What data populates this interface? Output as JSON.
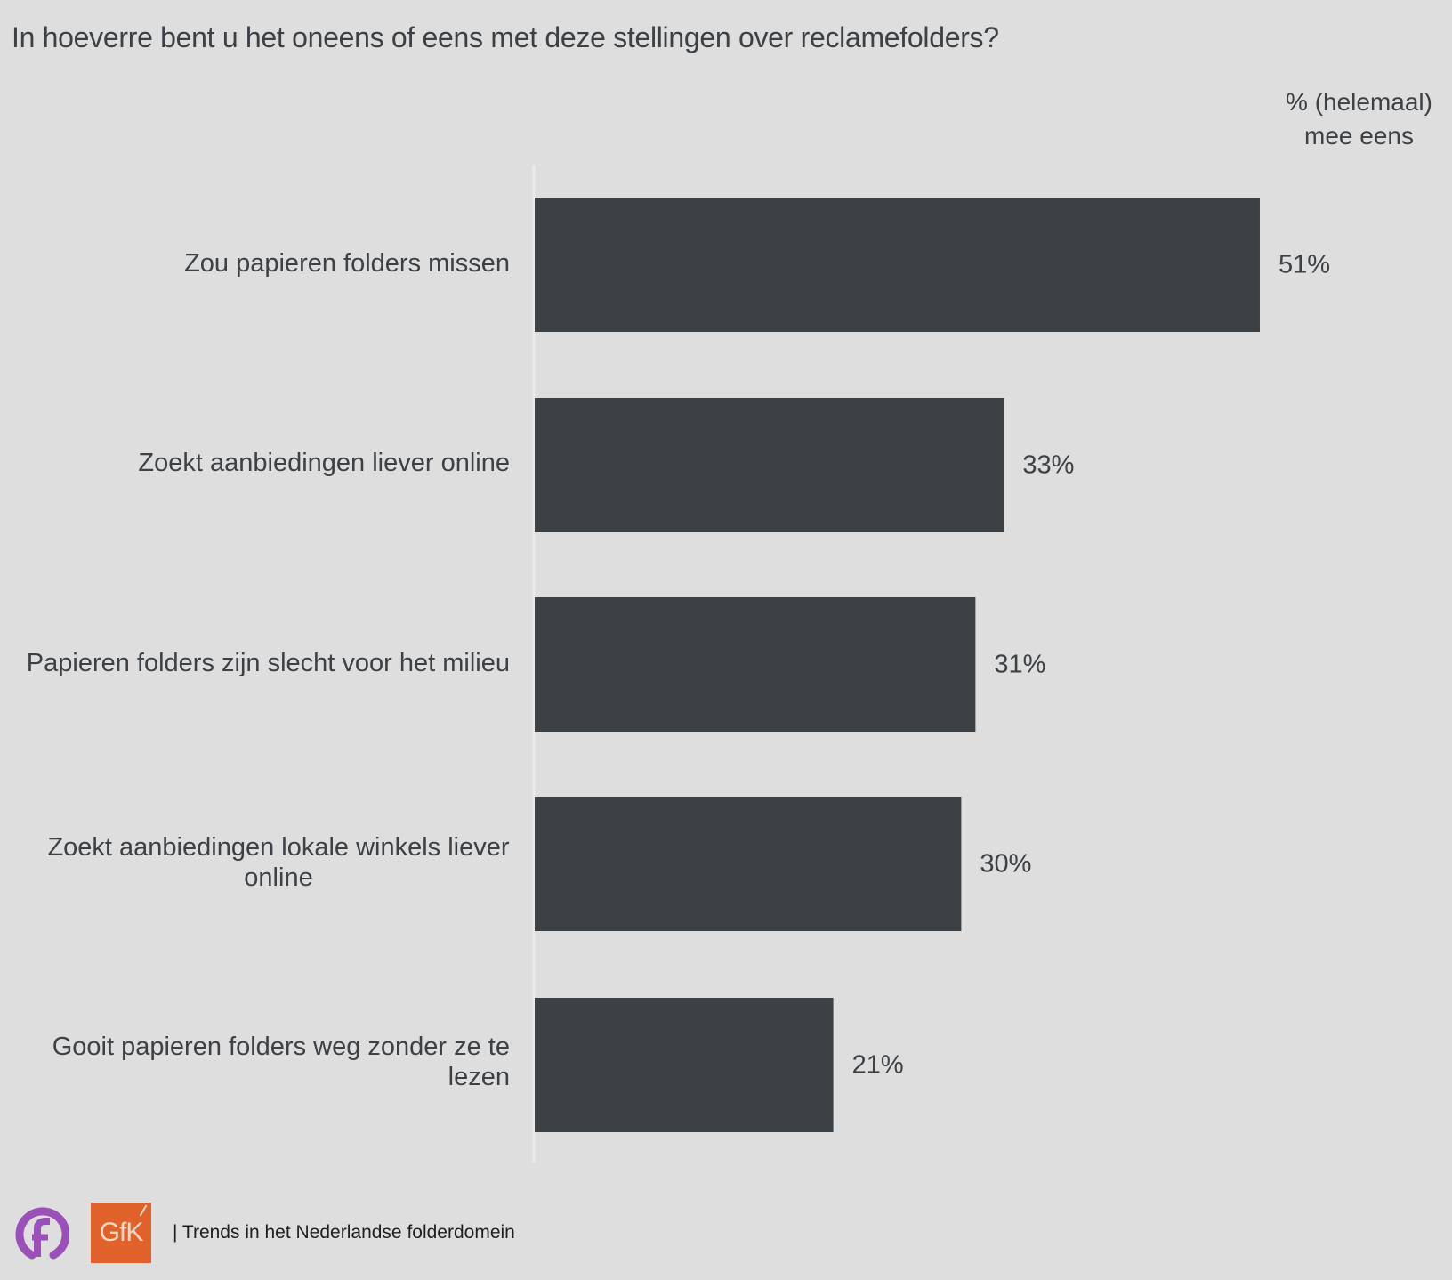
{
  "chart_data": {
    "type": "bar",
    "orientation": "horizontal",
    "title": "In hoeverre bent u het oneens of eens met deze stellingen over reclamefolders?",
    "value_header": "% (helemaal) mee eens",
    "categories": [
      "Zou papieren folders missen",
      "Zoekt aanbiedingen liever online",
      "Papieren folders zijn slecht voor het milieu",
      "Zoekt aanbiedingen lokale winkels liever online",
      "Gooit papieren folders weg zonder ze te lezen"
    ],
    "values": [
      51,
      33,
      31,
      30,
      21
    ],
    "value_labels": [
      "51%",
      "33%",
      "31%",
      "30%",
      "21%"
    ],
    "unit": "%",
    "xlabel": "",
    "ylabel": "",
    "xlim": [
      0,
      100
    ],
    "grid": false,
    "legend": "none",
    "bar_color": "#3c4146"
  },
  "header": {
    "title": "In hoeverre bent u het oneens of eens met deze stellingen over reclamefolders?",
    "col_header_line1": "% (helemaal)",
    "col_header_line2": "mee eens"
  },
  "labels": {
    "cat0": "Zou papieren folders missen",
    "cat1": "Zoekt aanbiedingen liever online",
    "cat2": "Papieren folders zijn slecht voor het milieu",
    "cat3_line1": "Zoekt aanbiedingen lokale winkels liever",
    "cat3_line2": "online",
    "cat4": "Gooit papieren folders weg zonder ze te lezen"
  },
  "footer": {
    "logo_f": "f",
    "logo_gfk": "GfK",
    "text": "| Trends in het Nederlandse folderdomein",
    "logo_f_color": "#9b4fb8",
    "logo_gfk_color": "#e0612a"
  }
}
